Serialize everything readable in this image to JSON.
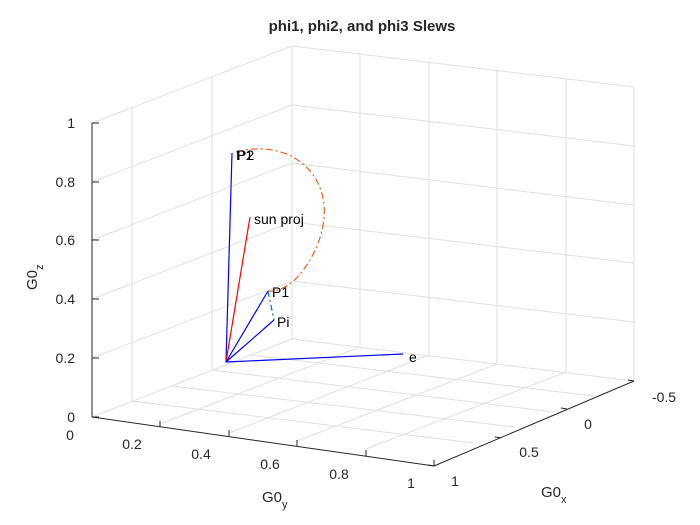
{
  "chart_data": {
    "type": "line",
    "title": "phi1, phi2, and phi3 Slews",
    "axes": {
      "x": {
        "label_base": "G0",
        "label_sub": "x",
        "lim": [
          -0.5,
          1
        ],
        "ticks": [
          -0.5,
          0,
          0.5,
          1
        ],
        "tick_labels": [
          "-0.5",
          "0",
          "0.5",
          "1"
        ]
      },
      "y": {
        "label_base": "G0",
        "label_sub": "y",
        "lim": [
          0,
          1
        ],
        "ticks": [
          0,
          0.2,
          0.4,
          0.6,
          0.8,
          1
        ],
        "tick_labels": [
          "0",
          "0.2",
          "0.4",
          "0.6",
          "0.8",
          "1"
        ]
      },
      "z": {
        "label_base": "G0",
        "label_sub": "z",
        "lim": [
          0,
          1
        ],
        "ticks": [
          0,
          0.2,
          0.4,
          0.6,
          0.8,
          1
        ],
        "tick_labels": [
          "0",
          "0.2",
          "0.4",
          "0.6",
          "0.8",
          "1"
        ]
      }
    },
    "grid": true,
    "vectors": [
      {
        "label": "P2",
        "color": "#0000ff",
        "to": [
          0.05,
          0.26,
          0.96
        ]
      },
      {
        "label": "P1",
        "color": "#0000ff",
        "to": [
          0.09,
          0.2,
          0.72
        ]
      },
      {
        "label": "sun proj",
        "color": "#ff0000",
        "to": [
          0.03,
          0.26,
          0.72
        ]
      },
      {
        "label": "Pi",
        "color": "#0000ff",
        "to": [
          0.09,
          0.25,
          0.73
        ]
      },
      {
        "label": "e",
        "color": "#0000ff",
        "to": [
          0.97,
          0.24,
          0.29
        ]
      }
    ],
    "point_labels": [
      "P1",
      "P2",
      "sun proj",
      "P1",
      "Pi",
      "e"
    ],
    "arc": {
      "color": "#e8622d",
      "style": "dash-dot",
      "from": [
        0.05,
        0.26,
        0.96
      ],
      "to": [
        0.09,
        0.2,
        0.72
      ]
    },
    "short_segment": {
      "color": "#0072bd",
      "style": "dash-dot",
      "from": [
        0.09,
        0.2,
        0.72
      ],
      "to": [
        0.09,
        0.25,
        0.73
      ]
    }
  }
}
